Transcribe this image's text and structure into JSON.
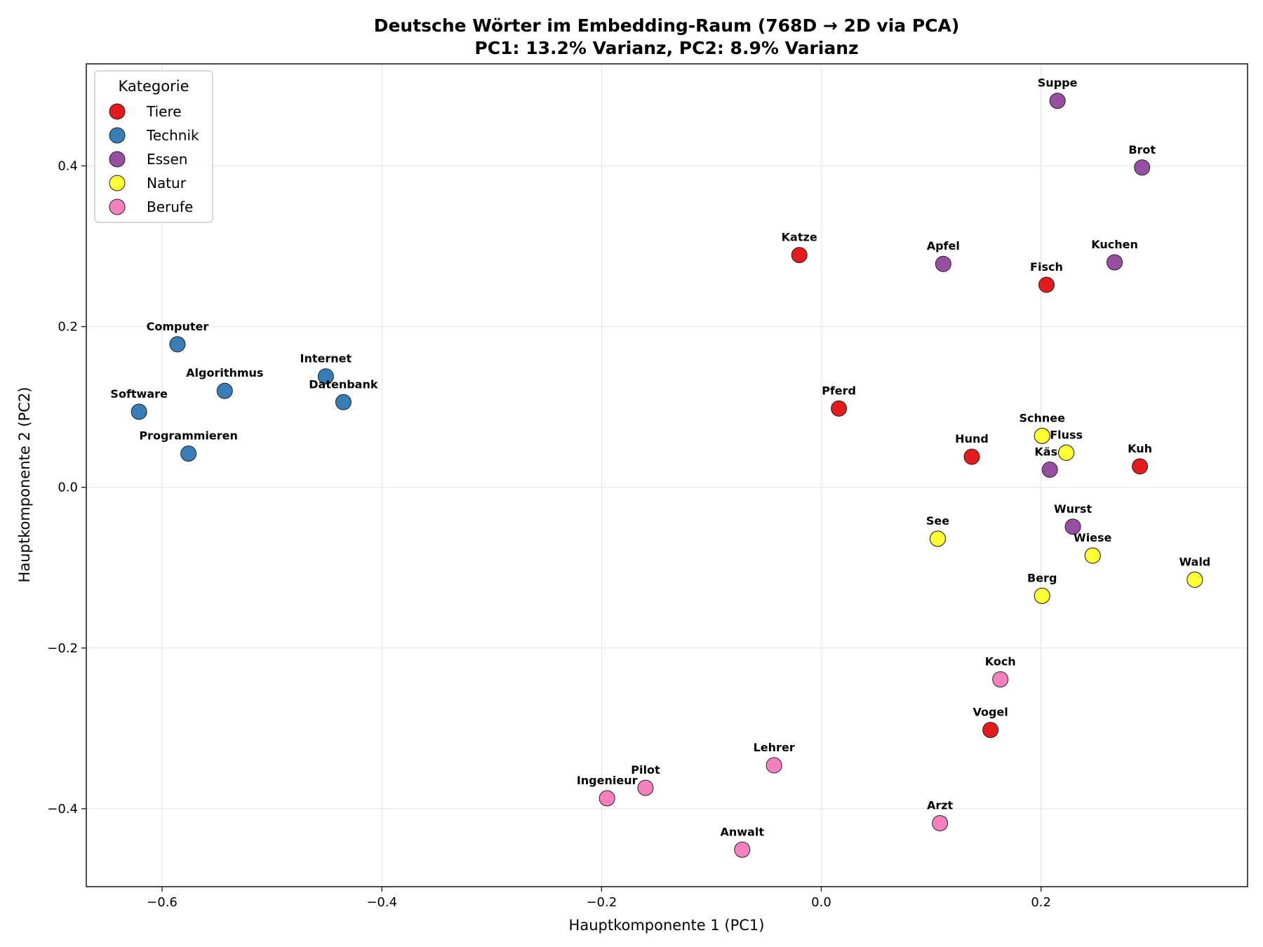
{
  "chart_data": {
    "type": "scatter",
    "title": "Deutsche Wörter im Embedding-Raum (768D → 2D via PCA)",
    "subtitle": "PC1: 13.2% Varianz, PC2: 8.9% Varianz",
    "xlabel": "Hauptkomponente 1 (PC1)",
    "ylabel": "Hauptkomponente 2 (PC2)",
    "xlim": [
      -0.669,
      0.388
    ],
    "ylim": [
      -0.497,
      0.527
    ],
    "xticks": [
      -0.6,
      -0.4,
      -0.2,
      0.0,
      0.2
    ],
    "xtick_labels": [
      "−0.6",
      "−0.4",
      "−0.2",
      "0.0",
      "0.2"
    ],
    "yticks": [
      -0.4,
      -0.2,
      0.0,
      0.2,
      0.4
    ],
    "ytick_labels": [
      "−0.4",
      "−0.2",
      "0.0",
      "0.2",
      "0.4"
    ],
    "grid": true,
    "legend": {
      "title": "Kategorie",
      "placement": "top-left",
      "entries": [
        "Tiere",
        "Technik",
        "Essen",
        "Natur",
        "Berufe"
      ]
    },
    "colors": {
      "Tiere": "#e41a1c",
      "Technik": "#377eb8",
      "Essen": "#984ea3",
      "Natur": "#ffff33",
      "Berufe": "#f781bf"
    },
    "series": [
      {
        "name": "Tiere",
        "points": [
          {
            "label": "Katze",
            "x": -0.02,
            "y": 0.289
          },
          {
            "label": "Pferd",
            "x": 0.016,
            "y": 0.098
          },
          {
            "label": "Fisch",
            "x": 0.205,
            "y": 0.252
          },
          {
            "label": "Hund",
            "x": 0.137,
            "y": 0.038
          },
          {
            "label": "Kuh",
            "x": 0.29,
            "y": 0.026
          },
          {
            "label": "Vogel",
            "x": 0.154,
            "y": -0.302
          }
        ]
      },
      {
        "name": "Technik",
        "points": [
          {
            "label": "Computer",
            "x": -0.586,
            "y": 0.178
          },
          {
            "label": "Algorithmus",
            "x": -0.543,
            "y": 0.12
          },
          {
            "label": "Software",
            "x": -0.621,
            "y": 0.094
          },
          {
            "label": "Programmieren",
            "x": -0.576,
            "y": 0.042
          },
          {
            "label": "Internet",
            "x": -0.451,
            "y": 0.138
          },
          {
            "label": "Datenbank",
            "x": -0.435,
            "y": 0.106
          }
        ]
      },
      {
        "name": "Essen",
        "points": [
          {
            "label": "Suppe",
            "x": 0.215,
            "y": 0.481
          },
          {
            "label": "Brot",
            "x": 0.292,
            "y": 0.398
          },
          {
            "label": "Apfel",
            "x": 0.111,
            "y": 0.278
          },
          {
            "label": "Kuchen",
            "x": 0.267,
            "y": 0.28
          },
          {
            "label": "Käse",
            "x": 0.208,
            "y": 0.022
          },
          {
            "label": "Wurst",
            "x": 0.229,
            "y": -0.049
          }
        ]
      },
      {
        "name": "Natur",
        "points": [
          {
            "label": "Schnee",
            "x": 0.201,
            "y": 0.064
          },
          {
            "label": "Fluss",
            "x": 0.223,
            "y": 0.043
          },
          {
            "label": "See",
            "x": 0.106,
            "y": -0.064
          },
          {
            "label": "Wiese",
            "x": 0.247,
            "y": -0.085
          },
          {
            "label": "Berg",
            "x": 0.201,
            "y": -0.135
          },
          {
            "label": "Wald",
            "x": 0.34,
            "y": -0.115
          }
        ]
      },
      {
        "name": "Berufe",
        "points": [
          {
            "label": "Koch",
            "x": 0.163,
            "y": -0.239
          },
          {
            "label": "Lehrer",
            "x": -0.043,
            "y": -0.346
          },
          {
            "label": "Pilot",
            "x": -0.16,
            "y": -0.374
          },
          {
            "label": "Ingenieur",
            "x": -0.195,
            "y": -0.387
          },
          {
            "label": "Anwalt",
            "x": -0.072,
            "y": -0.451
          },
          {
            "label": "Arzt",
            "x": 0.108,
            "y": -0.418
          }
        ]
      }
    ]
  }
}
